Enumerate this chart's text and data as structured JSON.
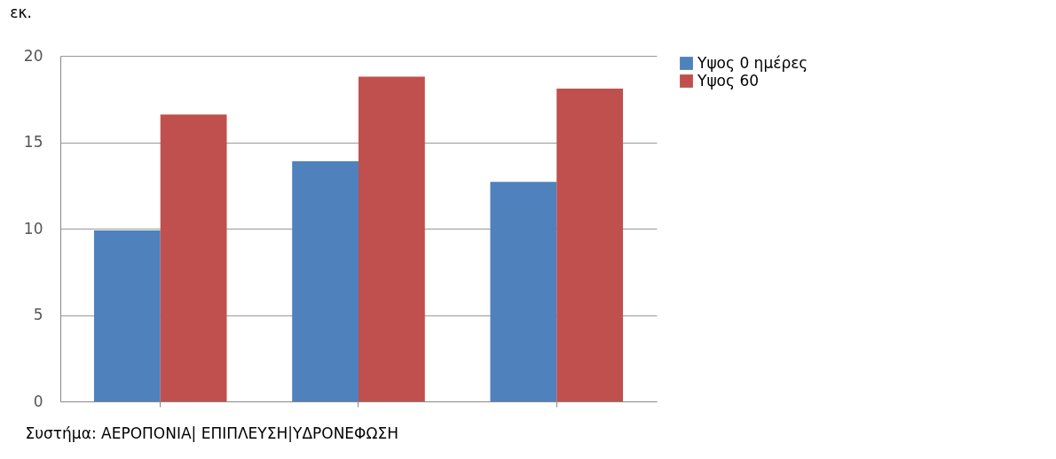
{
  "chart_data": {
    "type": "bar",
    "ylabel": "εκ.",
    "xlabel": "Συστήμα:  ΑΕΡΟΠΟΝΙΑ| ΕΠΙΠΛΕΥΣΗ|ΥΔΡΟΝΕΦΩΣΗ",
    "categories": [
      null,
      null,
      null
    ],
    "series": [
      {
        "name": "Υψος  0 ημέρες",
        "color": "#4f81bd",
        "values": [
          9.9,
          13.9,
          12.7
        ]
      },
      {
        "name": "Υψος  60",
        "color": "#c0504d",
        "values": [
          16.6,
          18.8,
          18.1
        ]
      }
    ],
    "ylim": [
      0,
      20
    ],
    "yticks": [
      0,
      5,
      10,
      15,
      20
    ],
    "grid": "y",
    "legend": "right"
  }
}
